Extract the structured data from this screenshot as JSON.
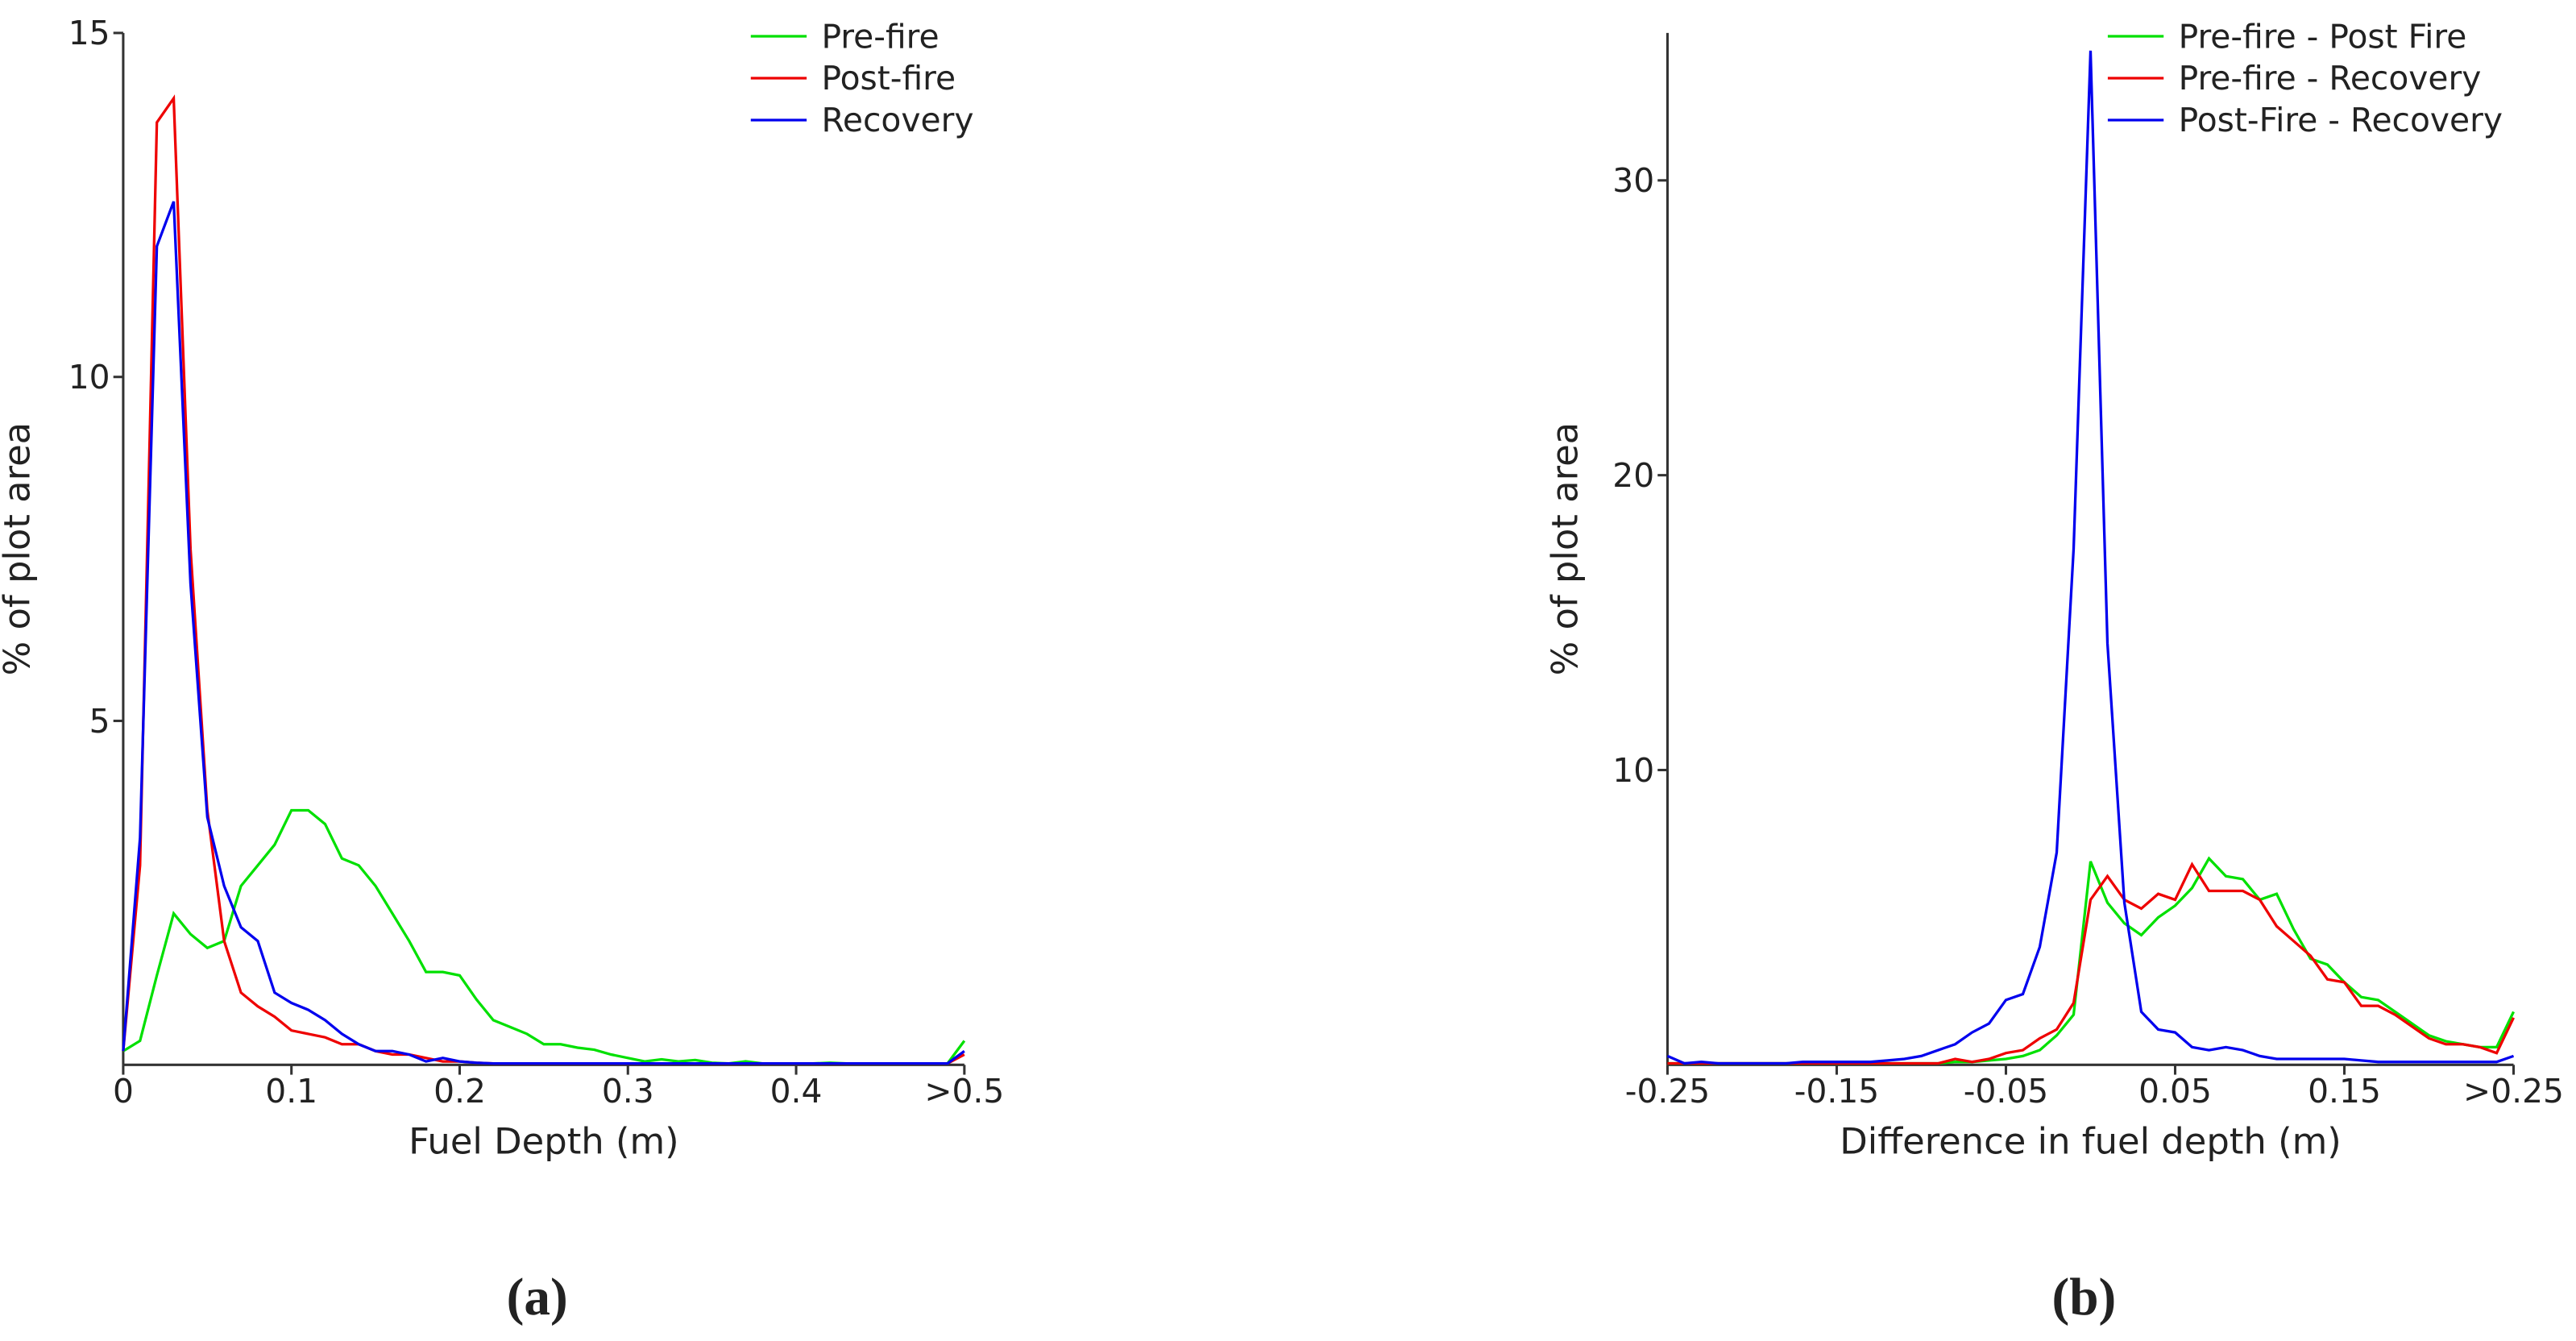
{
  "chart_data": [
    {
      "type": "line",
      "panel_label": "(a)",
      "x_label": "Fuel Depth (m)",
      "y_label": "% of plot area",
      "legend": "upper right",
      "x": [
        0,
        0.01,
        0.02,
        0.03,
        0.04,
        0.05,
        0.06,
        0.07,
        0.08,
        0.09,
        0.1,
        0.11,
        0.12,
        0.13,
        0.14,
        0.15,
        0.16,
        0.17,
        0.18,
        0.19,
        0.2,
        0.21,
        0.22,
        0.23,
        0.24,
        0.25,
        0.26,
        0.27,
        0.28,
        0.29,
        0.3,
        0.31,
        0.32,
        0.33,
        0.34,
        0.35,
        0.36,
        0.37,
        0.38,
        0.39,
        0.4,
        0.41,
        0.42,
        0.43,
        0.44,
        0.45,
        0.46,
        0.47,
        0.48,
        0.49,
        0.5
      ],
      "xlim": [
        0,
        0.5
      ],
      "xticks": [
        0,
        0.1,
        0.2,
        0.3,
        0.4,
        {
          "value": 0.5,
          "label": ">0.5"
        }
      ],
      "ylim": [
        0,
        15
      ],
      "yticks": [
        5,
        10,
        15
      ],
      "series": [
        {
          "name": "Pre-fire",
          "color": "#00e000",
          "values": [
            0.2,
            0.35,
            1.3,
            2.2,
            1.9,
            1.7,
            1.8,
            2.6,
            2.9,
            3.2,
            3.7,
            3.7,
            3.5,
            3.0,
            2.9,
            2.6,
            2.2,
            1.8,
            1.35,
            1.35,
            1.3,
            0.95,
            0.65,
            0.55,
            0.45,
            0.3,
            0.3,
            0.25,
            0.22,
            0.15,
            0.1,
            0.05,
            0.08,
            0.05,
            0.07,
            0.03,
            0.02,
            0.05,
            0.02,
            0.02,
            0.02,
            0.02,
            0.03,
            0.02,
            0.02,
            0.02,
            0.02,
            0.02,
            0.02,
            0.02,
            0.35
          ]
        },
        {
          "name": "Post-fire",
          "color": "#ee0000",
          "values": [
            0.2,
            2.9,
            13.7,
            14.05,
            7.5,
            3.7,
            1.8,
            1.05,
            0.85,
            0.7,
            0.5,
            0.45,
            0.4,
            0.3,
            0.3,
            0.2,
            0.15,
            0.15,
            0.1,
            0.05,
            0.05,
            0.03,
            0.02,
            0.02,
            0.02,
            0.02,
            0.02,
            0.02,
            0.02,
            0.02,
            0.02,
            0.02,
            0.02,
            0.02,
            0.02,
            0.02,
            0.02,
            0.02,
            0.02,
            0.02,
            0.02,
            0.02,
            0.02,
            0.02,
            0.02,
            0.02,
            0.02,
            0.02,
            0.02,
            0.02,
            0.15
          ]
        },
        {
          "name": "Recovery",
          "color": "#0000ee",
          "values": [
            0.2,
            3.3,
            11.9,
            12.55,
            7.0,
            3.6,
            2.6,
            2.0,
            1.8,
            1.05,
            0.9,
            0.8,
            0.65,
            0.45,
            0.3,
            0.2,
            0.2,
            0.15,
            0.05,
            0.1,
            0.05,
            0.03,
            0.02,
            0.02,
            0.02,
            0.02,
            0.02,
            0.02,
            0.02,
            0.02,
            0.02,
            0.02,
            0.02,
            0.02,
            0.02,
            0.02,
            0.02,
            0.02,
            0.02,
            0.02,
            0.02,
            0.02,
            0.02,
            0.02,
            0.02,
            0.02,
            0.02,
            0.02,
            0.02,
            0.02,
            0.2
          ]
        }
      ]
    },
    {
      "type": "line",
      "panel_label": "(b)",
      "x_label": "Difference in fuel depth (m)",
      "y_label": "% of plot area",
      "legend": "upper right",
      "x": [
        -0.25,
        -0.24,
        -0.23,
        -0.22,
        -0.21,
        -0.2,
        -0.19,
        -0.18,
        -0.17,
        -0.16,
        -0.15,
        -0.14,
        -0.13,
        -0.12,
        -0.11,
        -0.1,
        -0.09,
        -0.08,
        -0.07,
        -0.06,
        -0.05,
        -0.04,
        -0.03,
        -0.02,
        -0.01,
        0,
        0.01,
        0.02,
        0.03,
        0.04,
        0.05,
        0.06,
        0.07,
        0.08,
        0.09,
        0.1,
        0.11,
        0.12,
        0.13,
        0.14,
        0.15,
        0.16,
        0.17,
        0.18,
        0.19,
        0.2,
        0.21,
        0.22,
        0.23,
        0.24,
        0.25
      ],
      "xlim": [
        -0.25,
        0.25
      ],
      "xticks": [
        -0.25,
        -0.15,
        -0.05,
        0.05,
        0.15,
        {
          "value": 0.25,
          "label": ">0.25"
        }
      ],
      "ylim": [
        0,
        35
      ],
      "yticks": [
        10,
        20,
        30
      ],
      "series": [
        {
          "name": "Pre-fire - Post Fire",
          "color": "#00e000",
          "values": [
            0.05,
            0.05,
            0.05,
            0.05,
            0.05,
            0.05,
            0.05,
            0.05,
            0.05,
            0.05,
            0.05,
            0.05,
            0.05,
            0.05,
            0.05,
            0.05,
            0.05,
            0.1,
            0.1,
            0.15,
            0.2,
            0.3,
            0.5,
            1.0,
            1.7,
            6.9,
            5.5,
            4.8,
            4.4,
            5.0,
            5.4,
            6.0,
            7.0,
            6.4,
            6.3,
            5.6,
            5.8,
            4.6,
            3.6,
            3.4,
            2.8,
            2.3,
            2.2,
            1.8,
            1.4,
            1.0,
            0.8,
            0.7,
            0.6,
            0.6,
            1.8
          ]
        },
        {
          "name": "Pre-fire - Recovery",
          "color": "#ee0000",
          "values": [
            0.05,
            0.05,
            0.05,
            0.05,
            0.05,
            0.05,
            0.05,
            0.05,
            0.05,
            0.05,
            0.05,
            0.05,
            0.05,
            0.05,
            0.05,
            0.05,
            0.05,
            0.2,
            0.1,
            0.2,
            0.4,
            0.5,
            0.9,
            1.2,
            2.1,
            5.6,
            6.4,
            5.6,
            5.3,
            5.8,
            5.6,
            6.8,
            5.9,
            5.9,
            5.9,
            5.6,
            4.7,
            4.2,
            3.7,
            2.9,
            2.8,
            2.0,
            2.0,
            1.7,
            1.3,
            0.9,
            0.7,
            0.7,
            0.6,
            0.4,
            1.6
          ]
        },
        {
          "name": "Post-Fire - Recovery",
          "color": "#0000ee",
          "values": [
            0.3,
            0.05,
            0.1,
            0.05,
            0.05,
            0.05,
            0.05,
            0.05,
            0.1,
            0.1,
            0.1,
            0.1,
            0.1,
            0.15,
            0.2,
            0.3,
            0.5,
            0.7,
            1.1,
            1.4,
            2.2,
            2.4,
            4.0,
            7.2,
            17.5,
            34.4,
            14.3,
            5.5,
            1.8,
            1.2,
            1.1,
            0.6,
            0.5,
            0.6,
            0.5,
            0.3,
            0.2,
            0.2,
            0.2,
            0.2,
            0.2,
            0.15,
            0.1,
            0.1,
            0.1,
            0.1,
            0.1,
            0.1,
            0.1,
            0.1,
            0.3
          ]
        }
      ]
    }
  ]
}
